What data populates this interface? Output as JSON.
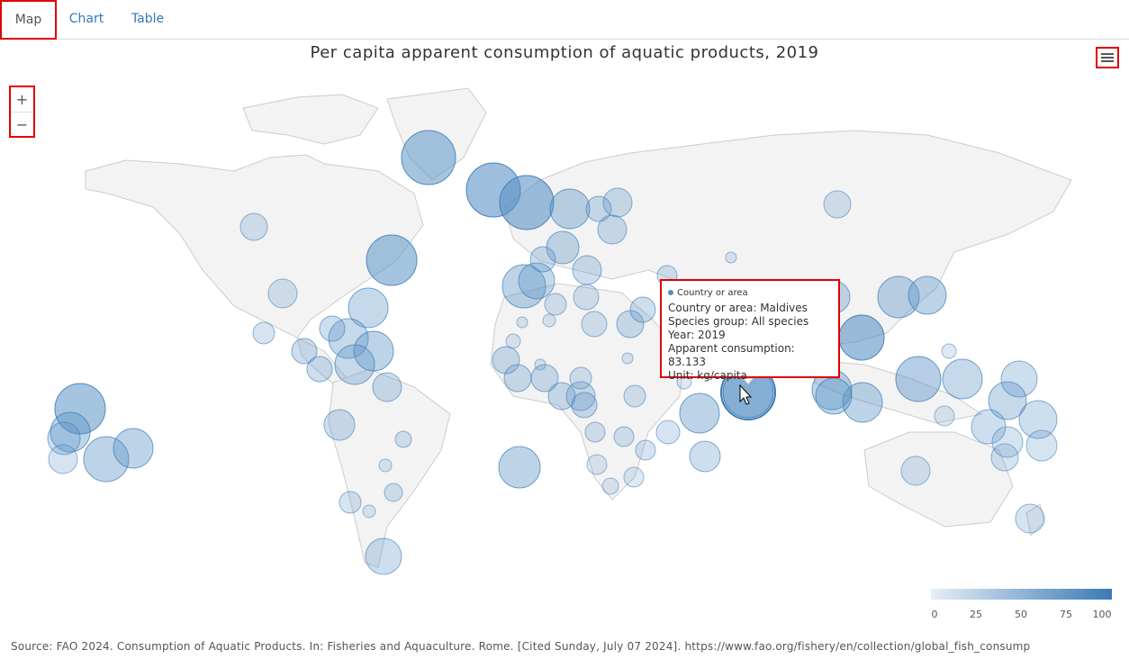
{
  "tabs": [
    {
      "label": "Map",
      "active": true
    },
    {
      "label": "Chart",
      "active": false
    },
    {
      "label": "Table",
      "active": false
    }
  ],
  "title": "Per capita apparent consumption of aquatic products, 2019",
  "menu_icon": "hamburger-menu-icon",
  "zoom": {
    "in_label": "+",
    "out_label": "−"
  },
  "tooltip": {
    "header": "Country or area",
    "country": "Country or area: Maldives",
    "species": "Species group: All species",
    "year": "Year: 2019",
    "consumption": "Apparent consumption: 83.133",
    "unit": "Unit: kg/capita"
  },
  "legend": {
    "ticks": [
      "0",
      "25",
      "50",
      "75",
      "100"
    ],
    "min_color": "#e6eff8",
    "max_color": "#3b7ab5"
  },
  "source": "Source: FAO 2024. Consumption of Aquatic Products. In: Fisheries and Aquaculture. Rome. [Cited Sunday, July 07 2024]. https://www.fao.org/fishery/en/collection/global_fish_consump",
  "colors": {
    "bubble": "#5b93c6",
    "land": "#f3f3f3",
    "border": "#cccccc"
  }
}
